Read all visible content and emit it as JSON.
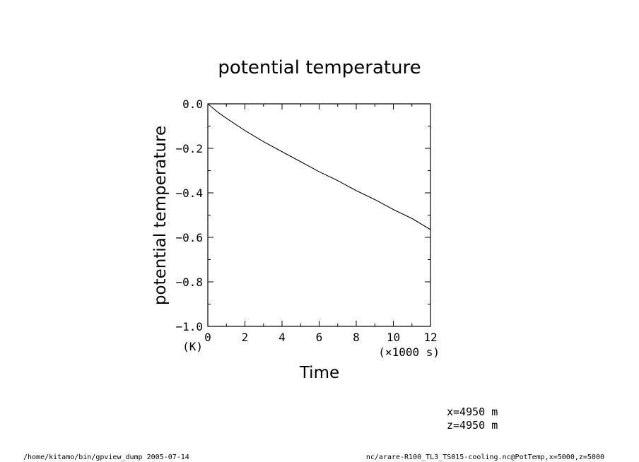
{
  "chart_data": {
    "type": "line",
    "title": "potential temperature",
    "xlabel": "Time",
    "x_unit_label": "(×1000 s)",
    "ylabel": "potential temperature",
    "y_unit_label": "(K)",
    "xlim": [
      0,
      12
    ],
    "ylim": [
      -1.0,
      0.0
    ],
    "x_ticks": [
      0,
      2,
      4,
      6,
      8,
      10,
      12
    ],
    "x_tick_labels": [
      "0",
      "2",
      "4",
      "6",
      "8",
      "10",
      "12"
    ],
    "y_ticks": [
      0.0,
      -0.2,
      -0.4,
      -0.6,
      -0.8,
      -1.0
    ],
    "y_tick_labels": [
      "0.0",
      "−0.2",
      "−0.4",
      "−0.6",
      "−0.8",
      "−1.0"
    ],
    "grid": false,
    "series": [
      {
        "x": [
          0,
          0.5,
          1,
          2,
          3,
          4,
          5,
          6,
          7,
          8,
          9,
          10,
          11,
          12
        ],
        "y": [
          0.0,
          -0.035,
          -0.065,
          -0.12,
          -0.17,
          -0.215,
          -0.26,
          -0.305,
          -0.345,
          -0.39,
          -0.43,
          -0.475,
          -0.515,
          -0.565
        ]
      }
    ]
  },
  "annotations": {
    "coord_x": "x=4950  m",
    "coord_z": "z=4950  m",
    "footer_left": "/home/kitamo/bin/gpview_dump  2005-07-14",
    "footer_right": "nc/arare-R100_TL3_TS015-cooling.nc@PotTemp,x=5000,z=5000"
  }
}
